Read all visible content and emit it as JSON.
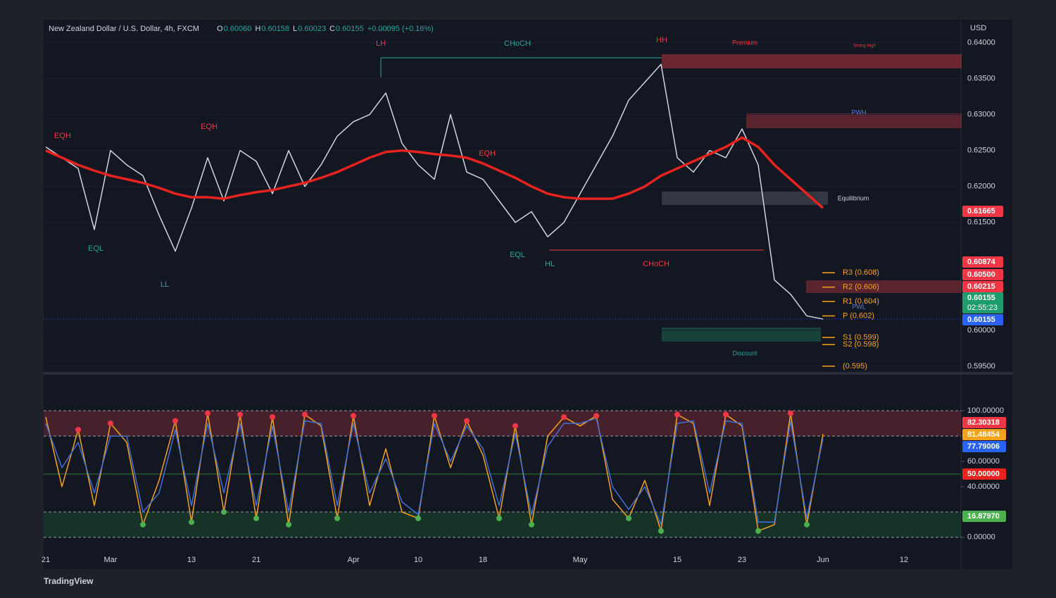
{
  "chart_data": [
    {
      "type": "line",
      "title": "New Zealand Dollar / U.S. Dollar, 4h, FXCM",
      "ohlc": [
        {
          "key": "O",
          "value": "0.60060"
        },
        {
          "key": "H",
          "value": "0.60158"
        },
        {
          "key": "L",
          "value": "0.60023"
        },
        {
          "key": "C",
          "value": "0.60155"
        }
      ],
      "change": "+0.00095 (+0.16%)",
      "currency": "USD",
      "ylim": [
        0.5945,
        0.6428
      ],
      "yticks": [
        {
          "value": 0.64,
          "label": "0.64000"
        },
        {
          "value": 0.635,
          "label": "0.63500"
        },
        {
          "value": 0.63,
          "label": "0.63000"
        },
        {
          "value": 0.625,
          "label": "0.62500"
        },
        {
          "value": 0.62,
          "label": "0.62000"
        },
        {
          "value": 0.615,
          "label": "0.61500"
        },
        {
          "value": 0.6,
          "label": "0.60000"
        },
        {
          "value": 0.595,
          "label": "0.59500"
        }
      ],
      "series": [
        {
          "name": "Price",
          "color": "#d1d4dc",
          "values": [
            0.6255,
            0.624,
            0.6225,
            0.614,
            0.625,
            0.623,
            0.6215,
            0.616,
            0.611,
            0.617,
            0.624,
            0.618,
            0.625,
            0.6235,
            0.619,
            0.625,
            0.62,
            0.623,
            0.627,
            0.629,
            0.63,
            0.633,
            0.626,
            0.623,
            0.621,
            0.63,
            0.622,
            0.621,
            0.618,
            0.615,
            0.6165,
            0.613,
            0.615,
            0.619,
            0.623,
            0.627,
            0.632,
            0.6345,
            0.637,
            0.624,
            0.622,
            0.625,
            0.624,
            0.628,
            0.623,
            0.607,
            0.605,
            0.602,
            0.60155,
            null,
            null,
            null,
            null,
            null
          ]
        },
        {
          "name": "EMA",
          "color": "#e8221f",
          "values": [
            0.625,
            0.624,
            0.623,
            0.6222,
            0.6215,
            0.621,
            0.6205,
            0.6198,
            0.619,
            0.6185,
            0.6185,
            0.6183,
            0.6188,
            0.6192,
            0.6195,
            0.62,
            0.6205,
            0.6212,
            0.622,
            0.623,
            0.624,
            0.6248,
            0.625,
            0.6248,
            0.6245,
            0.6243,
            0.624,
            0.6232,
            0.6222,
            0.6212,
            0.62,
            0.619,
            0.6185,
            0.6183,
            0.6183,
            0.6183,
            0.619,
            0.62,
            0.6215,
            0.6225,
            0.6235,
            0.6245,
            0.6255,
            0.6268,
            0.6255,
            0.623,
            0.621,
            0.619,
            0.617,
            null,
            null,
            null,
            null,
            null
          ]
        }
      ],
      "price_tags": [
        {
          "value": 0.61665,
          "label": "0.61665",
          "color": "#f23645"
        },
        {
          "value": 0.60874,
          "label": "0.60874",
          "color": "#f23645"
        },
        {
          "value": 0.605,
          "label": "0.60500",
          "color": "#f23645"
        },
        {
          "value": 0.60215,
          "label": "0.60215",
          "color": "#f23645"
        },
        {
          "value": 0.60155,
          "label": "0.60155",
          "sub": "02:55:23",
          "color": "#1e9c6e"
        },
        {
          "value": 0.60155,
          "label": "0.60155",
          "color": "#2962ff"
        }
      ],
      "pivots": [
        {
          "value": 0.608,
          "label": "R3 (0.608)"
        },
        {
          "value": 0.606,
          "label": "R2 (0.606)"
        },
        {
          "value": 0.604,
          "label": "R1 (0.604)"
        },
        {
          "value": 0.602,
          "label": "P (0.602)"
        },
        {
          "value": 0.599,
          "label": "S1 (0.599)"
        },
        {
          "value": 0.598,
          "label": "S2 (0.598)"
        },
        {
          "value": 0.595,
          "label": "(0.595)"
        }
      ],
      "annotations": [
        "LH",
        "CHoCH",
        "HH",
        "Premium",
        "Strong High",
        "EQH",
        "EQH",
        "EQH",
        "EQL",
        "EQL",
        "LL",
        "HL",
        "CHoCH",
        "Equilibrium",
        "Discount",
        "PWH",
        "PWL"
      ]
    },
    {
      "type": "line",
      "categories": [
        "21",
        null,
        null,
        null,
        "Mar",
        null,
        null,
        null,
        null,
        "13",
        null,
        null,
        null,
        "21",
        null,
        null,
        null,
        null,
        null,
        "Apr",
        null,
        null,
        null,
        "10",
        null,
        null,
        null,
        "18",
        null,
        null,
        null,
        null,
        null,
        "May",
        null,
        null,
        null,
        null,
        null,
        "15",
        null,
        null,
        null,
        "23",
        null,
        null,
        null,
        null,
        "Jun",
        null,
        null,
        null,
        null,
        "12"
      ],
      "ylim": [
        -9,
        124
      ],
      "yticks": [
        {
          "value": 100,
          "label": "100.00000"
        },
        {
          "value": 60,
          "label": "60.00000"
        },
        {
          "value": 40,
          "label": "40.00000"
        },
        {
          "value": 0,
          "label": "0.00000"
        }
      ],
      "levels": [
        100,
        80,
        50,
        20,
        0
      ],
      "series": [
        {
          "name": "%K",
          "color": "#f7a21b",
          "values": [
            95,
            40,
            85,
            25,
            90,
            75,
            10,
            45,
            92,
            12,
            98,
            20,
            97,
            15,
            95,
            10,
            97,
            88,
            15,
            96,
            25,
            70,
            20,
            15,
            96,
            55,
            92,
            65,
            15,
            88,
            10,
            80,
            95,
            88,
            96,
            30,
            15,
            45,
            5,
            97,
            90,
            25,
            97,
            88,
            5,
            10,
            98,
            10,
            81.48454,
            null,
            null,
            null,
            null,
            null
          ]
        },
        {
          "name": "%D",
          "color": "#3f6fd8",
          "values": [
            90,
            55,
            75,
            35,
            80,
            80,
            20,
            35,
            85,
            25,
            90,
            35,
            90,
            25,
            88,
            20,
            92,
            90,
            25,
            90,
            35,
            62,
            28,
            18,
            90,
            60,
            88,
            70,
            25,
            82,
            18,
            72,
            90,
            90,
            94,
            40,
            22,
            40,
            10,
            90,
            92,
            35,
            92,
            90,
            12,
            12,
            92,
            15,
            77.79006,
            null,
            null,
            null,
            null,
            null
          ]
        }
      ],
      "value_tags": [
        {
          "value": 82.30318,
          "label": "82.30318",
          "color": "#f23645"
        },
        {
          "value": 81.48454,
          "label": "81.48454",
          "color": "#f7a21b"
        },
        {
          "value": 77.79006,
          "label": "77.79006",
          "color": "#2962ff"
        },
        {
          "value": 50,
          "label": "50.00000",
          "color": "#e8221f"
        },
        {
          "value": 16.8797,
          "label": "16.87970",
          "color": "#4caf50"
        }
      ]
    }
  ],
  "footer": "TradingView"
}
